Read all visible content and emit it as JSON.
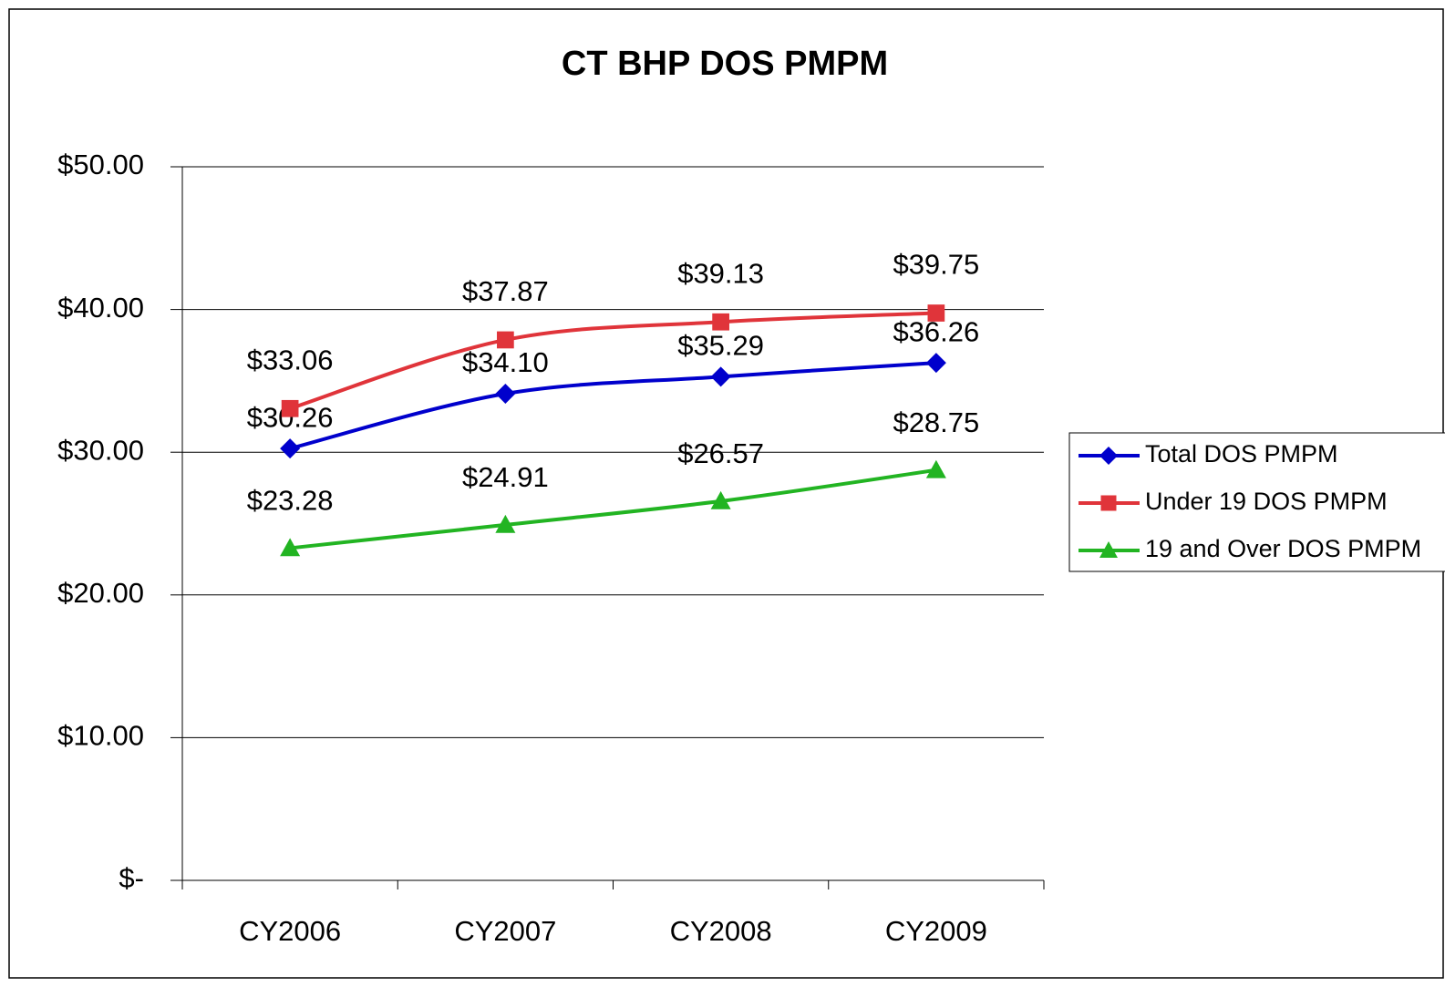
{
  "chart_data": {
    "type": "line",
    "title": "CT BHP DOS PMPM",
    "categories": [
      "CY2006",
      "CY2007",
      "CY2008",
      "CY2009"
    ],
    "series": [
      {
        "name": "Total DOS PMPM",
        "color": "#0000cc",
        "marker": "diamond",
        "values": [
          30.26,
          34.1,
          35.29,
          36.26
        ],
        "value_labels": [
          "$30.26",
          "$34.10",
          "$35.29",
          "$36.26"
        ]
      },
      {
        "name": "Under 19 DOS PMPM",
        "color": "#e0343a",
        "marker": "square",
        "values": [
          33.06,
          37.87,
          39.13,
          39.75
        ],
        "value_labels": [
          "$33.06",
          "$37.87",
          "$39.13",
          "$39.75"
        ]
      },
      {
        "name": "19 and Over DOS PMPM",
        "color": "#22b422",
        "marker": "triangle",
        "values": [
          23.28,
          24.91,
          26.57,
          28.75
        ],
        "value_labels": [
          "$23.28",
          "$24.91",
          "$26.57",
          "$28.75"
        ]
      }
    ],
    "ylim": [
      0,
      50
    ],
    "yticks": [
      {
        "value": 0,
        "label": "$-"
      },
      {
        "value": 10,
        "label": "$10.00"
      },
      {
        "value": 20,
        "label": "$20.00"
      },
      {
        "value": 30,
        "label": "$30.00"
      },
      {
        "value": 40,
        "label": "$40.00"
      },
      {
        "value": 50,
        "label": "$50.00"
      }
    ],
    "grid": true,
    "smooth": true,
    "legend": "right"
  }
}
